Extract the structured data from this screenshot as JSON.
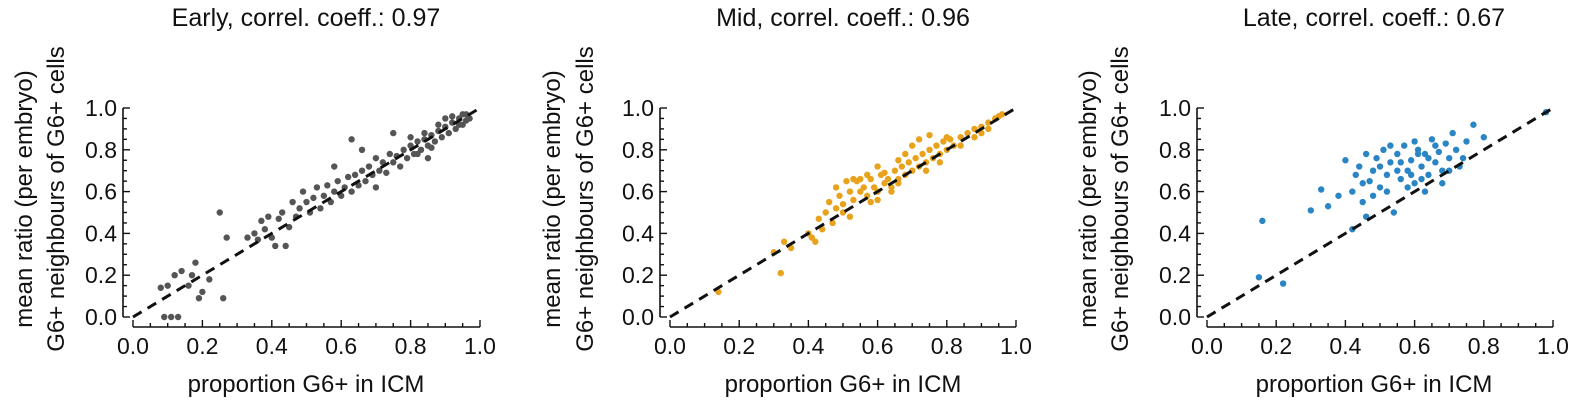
{
  "chart_data": [
    {
      "type": "scatter",
      "title": "Early, correl. coeff.: 0.97",
      "xlabel": "proportion G6+ in ICM",
      "ylabel_line1": "mean ratio (per embryo)",
      "ylabel_line2": "G6+ neighbours of G6+ cells",
      "xlim": [
        0,
        1
      ],
      "ylim": [
        0,
        1
      ],
      "xticks": [
        "0.0",
        "0.2",
        "0.4",
        "0.6",
        "0.8",
        "1.0"
      ],
      "yticks": [
        "0.0",
        "0.2",
        "0.4",
        "0.6",
        "0.8",
        "1.0"
      ],
      "color": "#555555",
      "reference_line": "y = x (dashed)",
      "points": [
        [
          0.08,
          0.14
        ],
        [
          0.09,
          0.0
        ],
        [
          0.1,
          0.15
        ],
        [
          0.11,
          0.0
        ],
        [
          0.12,
          0.2
        ],
        [
          0.13,
          0.0
        ],
        [
          0.14,
          0.22
        ],
        [
          0.16,
          0.15
        ],
        [
          0.17,
          0.2
        ],
        [
          0.18,
          0.26
        ],
        [
          0.19,
          0.09
        ],
        [
          0.2,
          0.12
        ],
        [
          0.22,
          0.18
        ],
        [
          0.25,
          0.5
        ],
        [
          0.26,
          0.09
        ],
        [
          0.27,
          0.38
        ],
        [
          0.33,
          0.38
        ],
        [
          0.35,
          0.4
        ],
        [
          0.36,
          0.37
        ],
        [
          0.37,
          0.46
        ],
        [
          0.38,
          0.42
        ],
        [
          0.39,
          0.48
        ],
        [
          0.4,
          0.38
        ],
        [
          0.41,
          0.34
        ],
        [
          0.42,
          0.47
        ],
        [
          0.43,
          0.5
        ],
        [
          0.44,
          0.34
        ],
        [
          0.45,
          0.43
        ],
        [
          0.46,
          0.55
        ],
        [
          0.47,
          0.48
        ],
        [
          0.48,
          0.52
        ],
        [
          0.49,
          0.6
        ],
        [
          0.5,
          0.55
        ],
        [
          0.51,
          0.5
        ],
        [
          0.52,
          0.57
        ],
        [
          0.53,
          0.62
        ],
        [
          0.54,
          0.52
        ],
        [
          0.55,
          0.58
        ],
        [
          0.56,
          0.63
        ],
        [
          0.57,
          0.55
        ],
        [
          0.58,
          0.6
        ],
        [
          0.59,
          0.65
        ],
        [
          0.6,
          0.58
        ],
        [
          0.61,
          0.62
        ],
        [
          0.62,
          0.67
        ],
        [
          0.63,
          0.6
        ],
        [
          0.64,
          0.68
        ],
        [
          0.65,
          0.63
        ],
        [
          0.66,
          0.7
        ],
        [
          0.67,
          0.65
        ],
        [
          0.68,
          0.72
        ],
        [
          0.69,
          0.68
        ],
        [
          0.7,
          0.76
        ],
        [
          0.71,
          0.7
        ],
        [
          0.72,
          0.74
        ],
        [
          0.73,
          0.69
        ],
        [
          0.74,
          0.78
        ],
        [
          0.75,
          0.74
        ],
        [
          0.76,
          0.77
        ],
        [
          0.77,
          0.72
        ],
        [
          0.78,
          0.8
        ],
        [
          0.79,
          0.76
        ],
        [
          0.8,
          0.82
        ],
        [
          0.81,
          0.78
        ],
        [
          0.82,
          0.84
        ],
        [
          0.83,
          0.8
        ],
        [
          0.84,
          0.85
        ],
        [
          0.85,
          0.82
        ],
        [
          0.86,
          0.87
        ],
        [
          0.87,
          0.84
        ],
        [
          0.88,
          0.89
        ],
        [
          0.89,
          0.86
        ],
        [
          0.9,
          0.91
        ],
        [
          0.91,
          0.88
        ],
        [
          0.92,
          0.93
        ],
        [
          0.93,
          0.9
        ],
        [
          0.94,
          0.95
        ],
        [
          0.95,
          0.92
        ],
        [
          0.96,
          0.97
        ],
        [
          0.97,
          0.95
        ],
        [
          0.63,
          0.85
        ],
        [
          0.66,
          0.8
        ],
        [
          0.75,
          0.88
        ],
        [
          0.58,
          0.72
        ],
        [
          0.7,
          0.62
        ],
        [
          0.8,
          0.86
        ],
        [
          0.85,
          0.76
        ],
        [
          0.9,
          0.95
        ],
        [
          0.92,
          0.96
        ],
        [
          0.94,
          0.92
        ],
        [
          0.95,
          0.97
        ],
        [
          0.96,
          0.94
        ],
        [
          0.88,
          0.92
        ],
        [
          0.86,
          0.81
        ],
        [
          0.84,
          0.88
        ],
        [
          0.82,
          0.78
        ]
      ]
    },
    {
      "type": "scatter",
      "title": "Mid, correl. coeff.: 0.96",
      "xlabel": "proportion G6+ in ICM",
      "ylabel_line1": "mean ratio (per embryo)",
      "ylabel_line2": "G6+ neighbours of G6+ cells",
      "xlim": [
        0,
        1
      ],
      "ylim": [
        0,
        1
      ],
      "xticks": [
        "0.0",
        "0.2",
        "0.4",
        "0.6",
        "0.8",
        "1.0"
      ],
      "yticks": [
        "0.0",
        "0.2",
        "0.4",
        "0.6",
        "0.8",
        "1.0"
      ],
      "color": "#e8a21c",
      "reference_line": "y = x (dashed)",
      "points": [
        [
          0.14,
          0.12
        ],
        [
          0.3,
          0.31
        ],
        [
          0.32,
          0.21
        ],
        [
          0.33,
          0.36
        ],
        [
          0.35,
          0.33
        ],
        [
          0.4,
          0.4
        ],
        [
          0.41,
          0.38
        ],
        [
          0.42,
          0.36
        ],
        [
          0.43,
          0.47
        ],
        [
          0.44,
          0.42
        ],
        [
          0.45,
          0.5
        ],
        [
          0.46,
          0.55
        ],
        [
          0.47,
          0.45
        ],
        [
          0.48,
          0.52
        ],
        [
          0.49,
          0.58
        ],
        [
          0.5,
          0.54
        ],
        [
          0.51,
          0.65
        ],
        [
          0.52,
          0.6
        ],
        [
          0.53,
          0.56
        ],
        [
          0.54,
          0.65
        ],
        [
          0.55,
          0.6
        ],
        [
          0.56,
          0.62
        ],
        [
          0.57,
          0.58
        ],
        [
          0.58,
          0.66
        ],
        [
          0.59,
          0.62
        ],
        [
          0.6,
          0.6
        ],
        [
          0.61,
          0.68
        ],
        [
          0.62,
          0.64
        ],
        [
          0.63,
          0.66
        ],
        [
          0.64,
          0.62
        ],
        [
          0.65,
          0.7
        ],
        [
          0.66,
          0.66
        ],
        [
          0.67,
          0.72
        ],
        [
          0.68,
          0.68
        ],
        [
          0.69,
          0.74
        ],
        [
          0.7,
          0.7
        ],
        [
          0.71,
          0.76
        ],
        [
          0.72,
          0.72
        ],
        [
          0.73,
          0.78
        ],
        [
          0.74,
          0.74
        ],
        [
          0.75,
          0.8
        ],
        [
          0.76,
          0.76
        ],
        [
          0.77,
          0.82
        ],
        [
          0.78,
          0.78
        ],
        [
          0.79,
          0.84
        ],
        [
          0.8,
          0.8
        ],
        [
          0.81,
          0.85
        ],
        [
          0.82,
          0.82
        ],
        [
          0.84,
          0.86
        ],
        [
          0.86,
          0.88
        ],
        [
          0.88,
          0.9
        ],
        [
          0.9,
          0.91
        ],
        [
          0.92,
          0.93
        ],
        [
          0.94,
          0.95
        ],
        [
          0.95,
          0.96
        ],
        [
          0.96,
          0.97
        ],
        [
          0.55,
          0.66
        ],
        [
          0.6,
          0.72
        ],
        [
          0.62,
          0.69
        ],
        [
          0.66,
          0.75
        ],
        [
          0.7,
          0.82
        ],
        [
          0.72,
          0.85
        ],
        [
          0.75,
          0.87
        ],
        [
          0.68,
          0.78
        ],
        [
          0.58,
          0.55
        ],
        [
          0.5,
          0.5
        ],
        [
          0.52,
          0.48
        ],
        [
          0.6,
          0.56
        ],
        [
          0.64,
          0.6
        ],
        [
          0.74,
          0.7
        ],
        [
          0.78,
          0.74
        ],
        [
          0.8,
          0.86
        ],
        [
          0.84,
          0.82
        ],
        [
          0.88,
          0.86
        ],
        [
          0.9,
          0.88
        ],
        [
          0.92,
          0.9
        ],
        [
          0.48,
          0.62
        ],
        [
          0.53,
          0.66
        ],
        [
          0.57,
          0.68
        ],
        [
          0.66,
          0.64
        ]
      ]
    },
    {
      "type": "scatter",
      "title": "Late, correl. coeff.: 0.67",
      "xlabel": "proportion G6+ in ICM",
      "ylabel_line1": "mean ratio (per embryo)",
      "ylabel_line2": "G6+ neighbours of G6+ cells",
      "xlim": [
        0,
        1
      ],
      "ylim": [
        0,
        1
      ],
      "xticks": [
        "0.0",
        "0.2",
        "0.4",
        "0.6",
        "0.8",
        "1.0"
      ],
      "yticks": [
        "0.0",
        "0.2",
        "0.4",
        "0.6",
        "0.8",
        "1.0"
      ],
      "color": "#2a85c4",
      "reference_line": "y = x (dashed)",
      "points": [
        [
          0.15,
          0.19
        ],
        [
          0.16,
          0.46
        ],
        [
          0.22,
          0.16
        ],
        [
          0.3,
          0.51
        ],
        [
          0.33,
          0.61
        ],
        [
          0.35,
          0.53
        ],
        [
          0.38,
          0.58
        ],
        [
          0.4,
          0.75
        ],
        [
          0.42,
          0.6
        ],
        [
          0.43,
          0.68
        ],
        [
          0.44,
          0.72
        ],
        [
          0.45,
          0.55
        ],
        [
          0.46,
          0.78
        ],
        [
          0.47,
          0.65
        ],
        [
          0.48,
          0.7
        ],
        [
          0.49,
          0.76
        ],
        [
          0.5,
          0.62
        ],
        [
          0.51,
          0.8
        ],
        [
          0.52,
          0.68
        ],
        [
          0.53,
          0.74
        ],
        [
          0.54,
          0.5
        ],
        [
          0.55,
          0.78
        ],
        [
          0.56,
          0.66
        ],
        [
          0.57,
          0.82
        ],
        [
          0.58,
          0.7
        ],
        [
          0.59,
          0.75
        ],
        [
          0.6,
          0.64
        ],
        [
          0.61,
          0.8
        ],
        [
          0.62,
          0.72
        ],
        [
          0.63,
          0.78
        ],
        [
          0.64,
          0.68
        ],
        [
          0.65,
          0.85
        ],
        [
          0.66,
          0.74
        ],
        [
          0.67,
          0.79
        ],
        [
          0.68,
          0.7
        ],
        [
          0.69,
          0.83
        ],
        [
          0.7,
          0.76
        ],
        [
          0.71,
          0.88
        ],
        [
          0.72,
          0.8
        ],
        [
          0.73,
          0.72
        ],
        [
          0.75,
          0.84
        ],
        [
          0.77,
          0.92
        ],
        [
          0.8,
          0.86
        ],
        [
          0.98,
          0.98
        ],
        [
          0.45,
          0.64
        ],
        [
          0.48,
          0.58
        ],
        [
          0.52,
          0.6
        ],
        [
          0.55,
          0.7
        ],
        [
          0.58,
          0.62
        ],
        [
          0.6,
          0.84
        ],
        [
          0.62,
          0.66
        ],
        [
          0.64,
          0.76
        ],
        [
          0.66,
          0.82
        ],
        [
          0.68,
          0.64
        ],
        [
          0.7,
          0.7
        ],
        [
          0.74,
          0.76
        ],
        [
          0.5,
          0.72
        ],
        [
          0.53,
          0.82
        ],
        [
          0.56,
          0.74
        ],
        [
          0.59,
          0.68
        ],
        [
          0.61,
          0.78
        ],
        [
          0.63,
          0.6
        ],
        [
          0.42,
          0.42
        ],
        [
          0.46,
          0.48
        ]
      ]
    }
  ]
}
